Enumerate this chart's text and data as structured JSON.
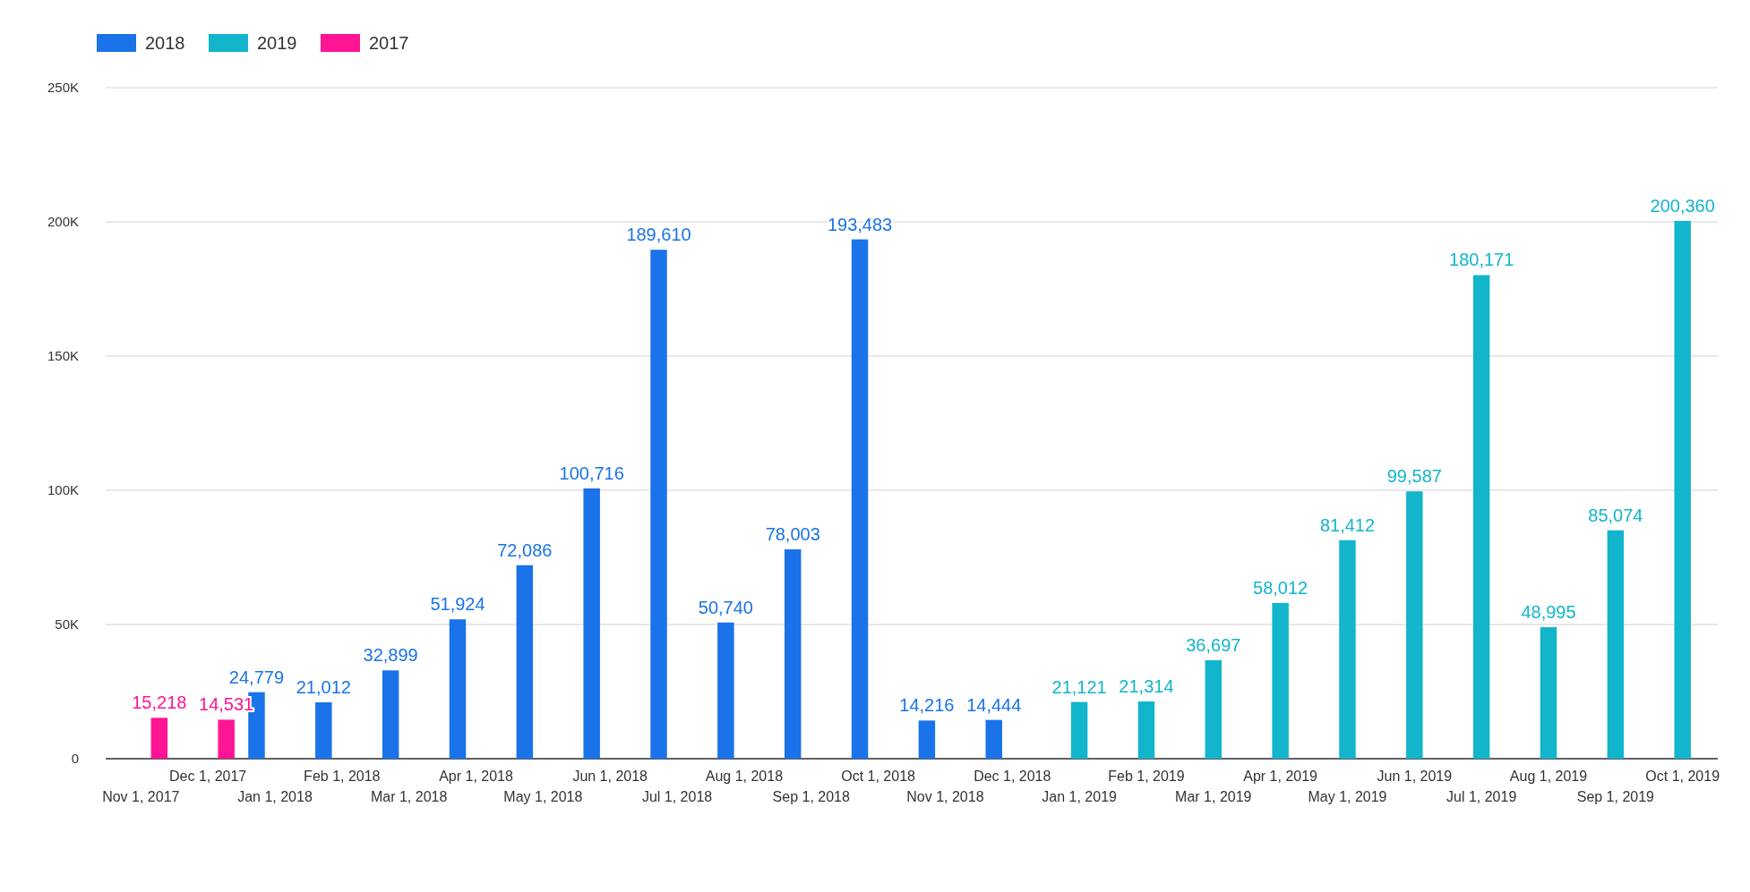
{
  "chart_data": {
    "type": "bar",
    "categories": [
      "Nov 1, 2017",
      "Dec 1, 2017",
      "Jan 1, 2018",
      "Feb 1, 2018",
      "Mar 1, 2018",
      "Apr 1, 2018",
      "May 1, 2018",
      "Jun 1, 2018",
      "Jul 1, 2018",
      "Aug 1, 2018",
      "Sep 1, 2018",
      "Oct 1, 2018",
      "Nov 1, 2018",
      "Dec 1, 2018",
      "Jan 1, 2019",
      "Feb 1, 2019",
      "Mar 1, 2019",
      "Apr 1, 2019",
      "May 1, 2019",
      "Jun 1, 2019",
      "Jul 1, 2019",
      "Aug 1, 2019",
      "Sep 1, 2019",
      "Oct 1, 2019"
    ],
    "series": [
      {
        "name": "2018",
        "color": "#1a73e8",
        "values": [
          null,
          null,
          24779,
          21012,
          32899,
          51924,
          72086,
          100716,
          189610,
          50740,
          78003,
          193483,
          14216,
          14444,
          null,
          null,
          null,
          null,
          null,
          null,
          null,
          null,
          null,
          null
        ],
        "value_labels": [
          null,
          null,
          "24,779",
          "21,012",
          "32,899",
          "51,924",
          "72,086",
          "100,716",
          "189,610",
          "50,740",
          "78,003",
          "193,483",
          "14,216",
          "14,444",
          null,
          null,
          null,
          null,
          null,
          null,
          null,
          null,
          null,
          null
        ]
      },
      {
        "name": "2019",
        "color": "#12b5cb",
        "values": [
          null,
          null,
          null,
          null,
          null,
          null,
          null,
          null,
          null,
          null,
          null,
          null,
          null,
          null,
          21121,
          21314,
          36697,
          58012,
          81412,
          99587,
          180171,
          48995,
          85074,
          200360
        ],
        "value_labels": [
          null,
          null,
          null,
          null,
          null,
          null,
          null,
          null,
          null,
          null,
          null,
          null,
          null,
          null,
          "21,121",
          "21,314",
          "36,697",
          "58,012",
          "81,412",
          "99,587",
          "180,171",
          "48,995",
          "85,074",
          "200,360"
        ]
      },
      {
        "name": "2017",
        "color": "#ff1493",
        "values": [
          15218,
          14531,
          null,
          null,
          null,
          null,
          null,
          null,
          null,
          null,
          null,
          null,
          null,
          null,
          null,
          null,
          null,
          null,
          null,
          null,
          null,
          null,
          null,
          null
        ],
        "value_labels": [
          "15,218",
          "14,531",
          null,
          null,
          null,
          null,
          null,
          null,
          null,
          null,
          null,
          null,
          null,
          null,
          null,
          null,
          null,
          null,
          null,
          null,
          null,
          null,
          null,
          null
        ]
      }
    ],
    "ylim": [
      0,
      250000
    ],
    "yticks": [
      0,
      {
        "value": 50000,
        "label": "50K"
      },
      {
        "value": 100000,
        "label": "100K"
      },
      {
        "value": 150000,
        "label": "150K"
      },
      {
        "value": 200000,
        "label": "200K"
      },
      {
        "value": 250000,
        "label": "250K"
      }
    ],
    "grid": "y",
    "legend": "top left"
  }
}
